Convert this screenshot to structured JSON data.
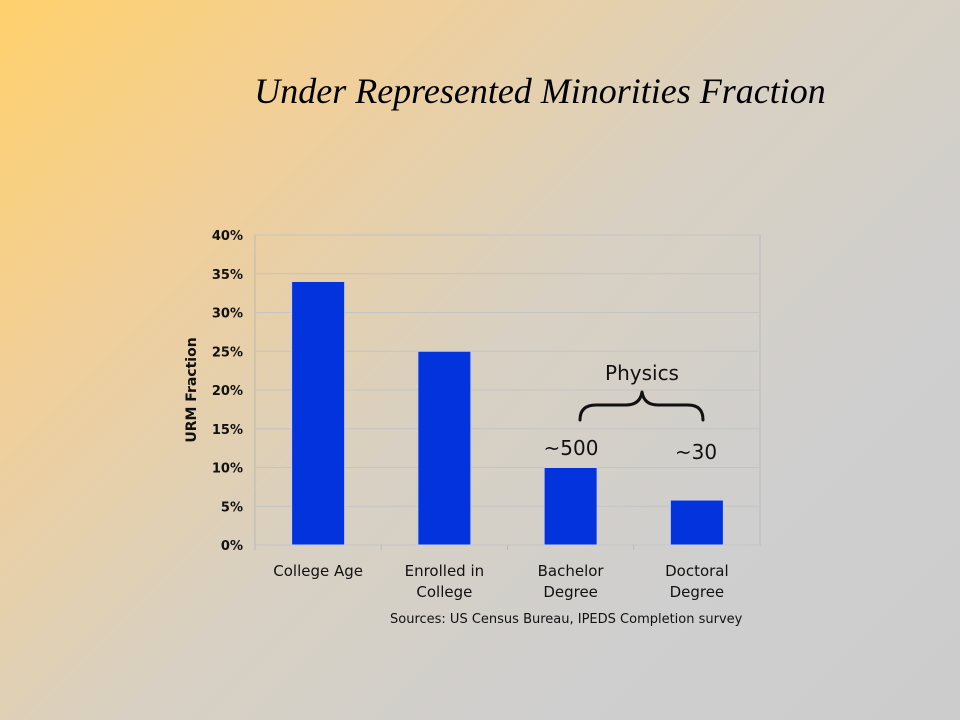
{
  "slide": {
    "title": "Under Represented Minorities Fraction"
  },
  "chart_data": {
    "type": "bar",
    "title": "",
    "xlabel": "",
    "ylabel": "URM Fraction",
    "categories": [
      [
        "College Age"
      ],
      [
        "Enrolled in",
        "College"
      ],
      [
        "Bachelor",
        "Degree"
      ],
      [
        "Doctoral",
        "Degree"
      ]
    ],
    "values": [
      34,
      25,
      10,
      5.8
    ],
    "ylim": [
      0,
      40
    ],
    "yticks": [
      0,
      5,
      10,
      15,
      20,
      25,
      30,
      35,
      40
    ],
    "ytick_labels": [
      "0%",
      "5%",
      "10%",
      "15%",
      "20%",
      "25%",
      "30%",
      "35%",
      "40%"
    ],
    "grid": true,
    "bar_color": "#0333dd",
    "annotations": {
      "bachelor_count": "~500",
      "doctoral_count": "~30",
      "bracket_label": "Physics"
    },
    "source": "Sources: US Census Bureau, IPEDS Completion survey"
  }
}
